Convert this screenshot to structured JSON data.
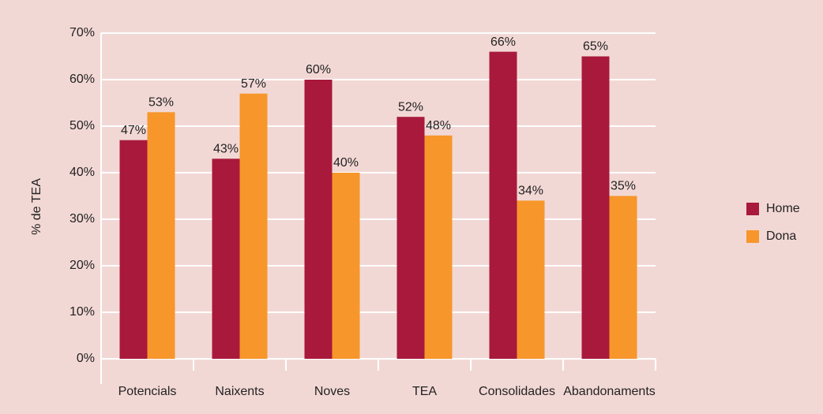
{
  "chart_data": {
    "type": "bar",
    "y_label": "% de TEA",
    "categories": [
      "Potencials",
      "Naixents",
      "Noves",
      "TEA",
      "Consolidades",
      "Abandonaments"
    ],
    "series": [
      {
        "name": "Home",
        "color": "#a8193b",
        "values": [
          47,
          43,
          60,
          52,
          66,
          65
        ],
        "value_labels": [
          "47%",
          "43%",
          "60%",
          "52%",
          "66%",
          "65%"
        ]
      },
      {
        "name": "Dona",
        "color": "#f7962a",
        "values": [
          53,
          57,
          40,
          48,
          34,
          35
        ],
        "value_labels": [
          "53%",
          "57%",
          "40%",
          "48%",
          "34%",
          "35%"
        ]
      }
    ],
    "ylim": [
      0,
      70
    ],
    "yticks": [
      {
        "value": 0,
        "label": "0%"
      },
      {
        "value": 10,
        "label": "10%"
      },
      {
        "value": 20,
        "label": "20%"
      },
      {
        "value": 30,
        "label": "30%"
      },
      {
        "value": 40,
        "label": "40%"
      },
      {
        "value": 50,
        "label": "50%"
      },
      {
        "value": 60,
        "label": "60%"
      },
      {
        "value": 70,
        "label": "70%"
      }
    ],
    "grid": true,
    "legend": "right"
  }
}
